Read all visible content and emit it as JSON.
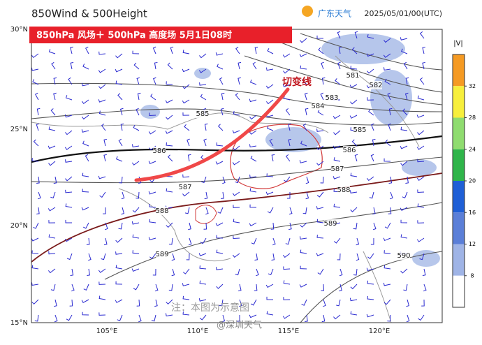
{
  "header": {
    "title": "850Wind & 500Height",
    "logo_text": "广东天气",
    "time": "2025/05/01/00(UTC)"
  },
  "banner": "850hPa 风场＋ 500hPa 高度场  5月1日08时",
  "annotation": "切变线",
  "contour_labels": [
    "581",
    "582",
    "583",
    "584",
    "585",
    "585",
    "586",
    "586",
    "587",
    "587",
    "588",
    "588",
    "589",
    "589",
    "590"
  ],
  "lat_labels": [
    "30°N",
    "25°N",
    "20°N",
    "15°N"
  ],
  "lon_labels": [
    "105°E",
    "110°E",
    "115°E",
    "120°E"
  ],
  "colorbar": {
    "title": "|V|",
    "ticks": [
      "32",
      "28",
      "24",
      "20",
      "16",
      "12",
      "8"
    ]
  },
  "note": "注：本图为示意图",
  "watermark": "@深圳天气"
}
